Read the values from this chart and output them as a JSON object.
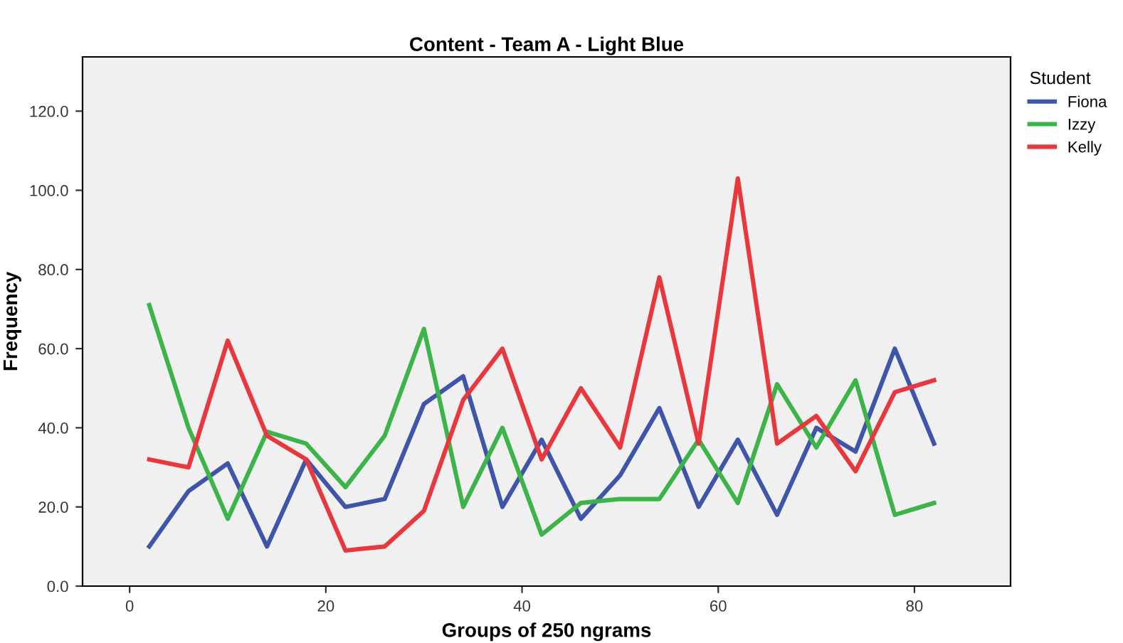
{
  "chart_data": {
    "type": "line",
    "title": "Content - Team A - Light Blue",
    "xlabel": "Groups of 250 ngrams",
    "ylabel": "Frequency",
    "legend_title": "Student",
    "x": [
      2,
      6,
      10,
      14,
      18,
      22,
      26,
      30,
      34,
      38,
      42,
      46,
      50,
      54,
      58,
      62,
      66,
      70,
      74,
      78,
      82
    ],
    "series": [
      {
        "name": "Fiona",
        "color": "#3f55a8",
        "values": [
          10,
          24,
          31,
          10,
          32,
          20,
          22,
          46,
          53,
          20,
          37,
          17,
          28,
          45,
          20,
          37,
          18,
          40,
          34,
          60,
          36
        ]
      },
      {
        "name": "Izzy",
        "color": "#3cb449",
        "values": [
          71,
          40,
          17,
          39,
          36,
          25,
          38,
          65,
          20,
          40,
          13,
          21,
          22,
          22,
          37,
          21,
          51,
          35,
          52,
          18,
          21
        ]
      },
      {
        "name": "Kelly",
        "color": "#e8373d",
        "values": [
          32,
          30,
          62,
          38,
          32,
          9,
          10,
          19,
          47,
          60,
          32,
          50,
          35,
          78,
          36,
          103,
          36,
          43,
          29,
          49,
          52
        ]
      }
    ],
    "xlim": [
      -4.8,
      89.8
    ],
    "ylim": [
      0,
      133.7
    ],
    "xticks": [
      0,
      20,
      40,
      60,
      80
    ],
    "yticks": [
      {
        "value": 0,
        "label": "0.0"
      },
      {
        "value": 20,
        "label": "20.0"
      },
      {
        "value": 40,
        "label": "40.0"
      },
      {
        "value": 60,
        "label": "60.0"
      },
      {
        "value": 80,
        "label": "80.0"
      },
      {
        "value": 100,
        "label": "100.0"
      },
      {
        "value": 120,
        "label": "120.0"
      }
    ],
    "grid": false,
    "legend": "top right",
    "marker": "none",
    "line_style": "solid"
  }
}
